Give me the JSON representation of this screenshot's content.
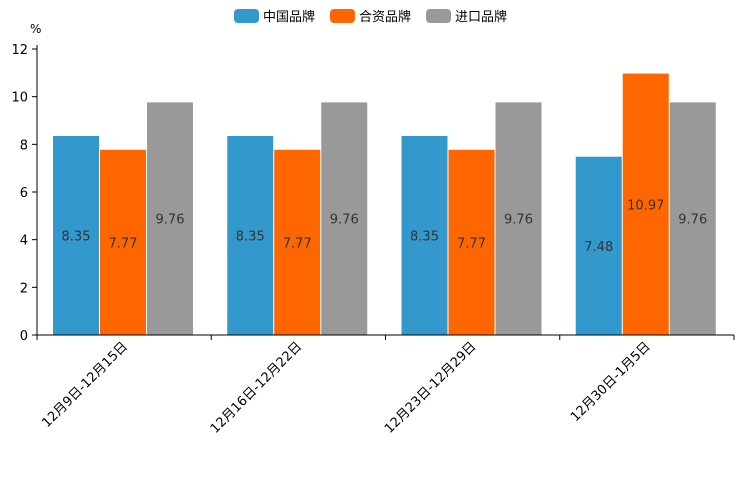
{
  "chart_data": {
    "type": "bar",
    "title": "",
    "xlabel": "",
    "ylabel": "%",
    "ylim": [
      0,
      12
    ],
    "yticks": [
      0,
      2,
      4,
      6,
      8,
      10,
      12
    ],
    "grid": false,
    "legend_position": "top-center",
    "categories": [
      "12月9日-12月15日",
      "12月16日-12月22日",
      "12月23日-12月29日",
      "12月30日-1月5日"
    ],
    "series": [
      {
        "name": "中国品牌",
        "color": "#3399cc",
        "values": [
          8.35,
          8.35,
          8.35,
          7.48
        ]
      },
      {
        "name": "合资品牌",
        "color": "#ff6600",
        "values": [
          7.77,
          7.77,
          7.77,
          10.97
        ]
      },
      {
        "name": "进口品牌",
        "color": "#999999",
        "values": [
          9.76,
          9.76,
          9.76,
          9.76
        ]
      }
    ]
  }
}
